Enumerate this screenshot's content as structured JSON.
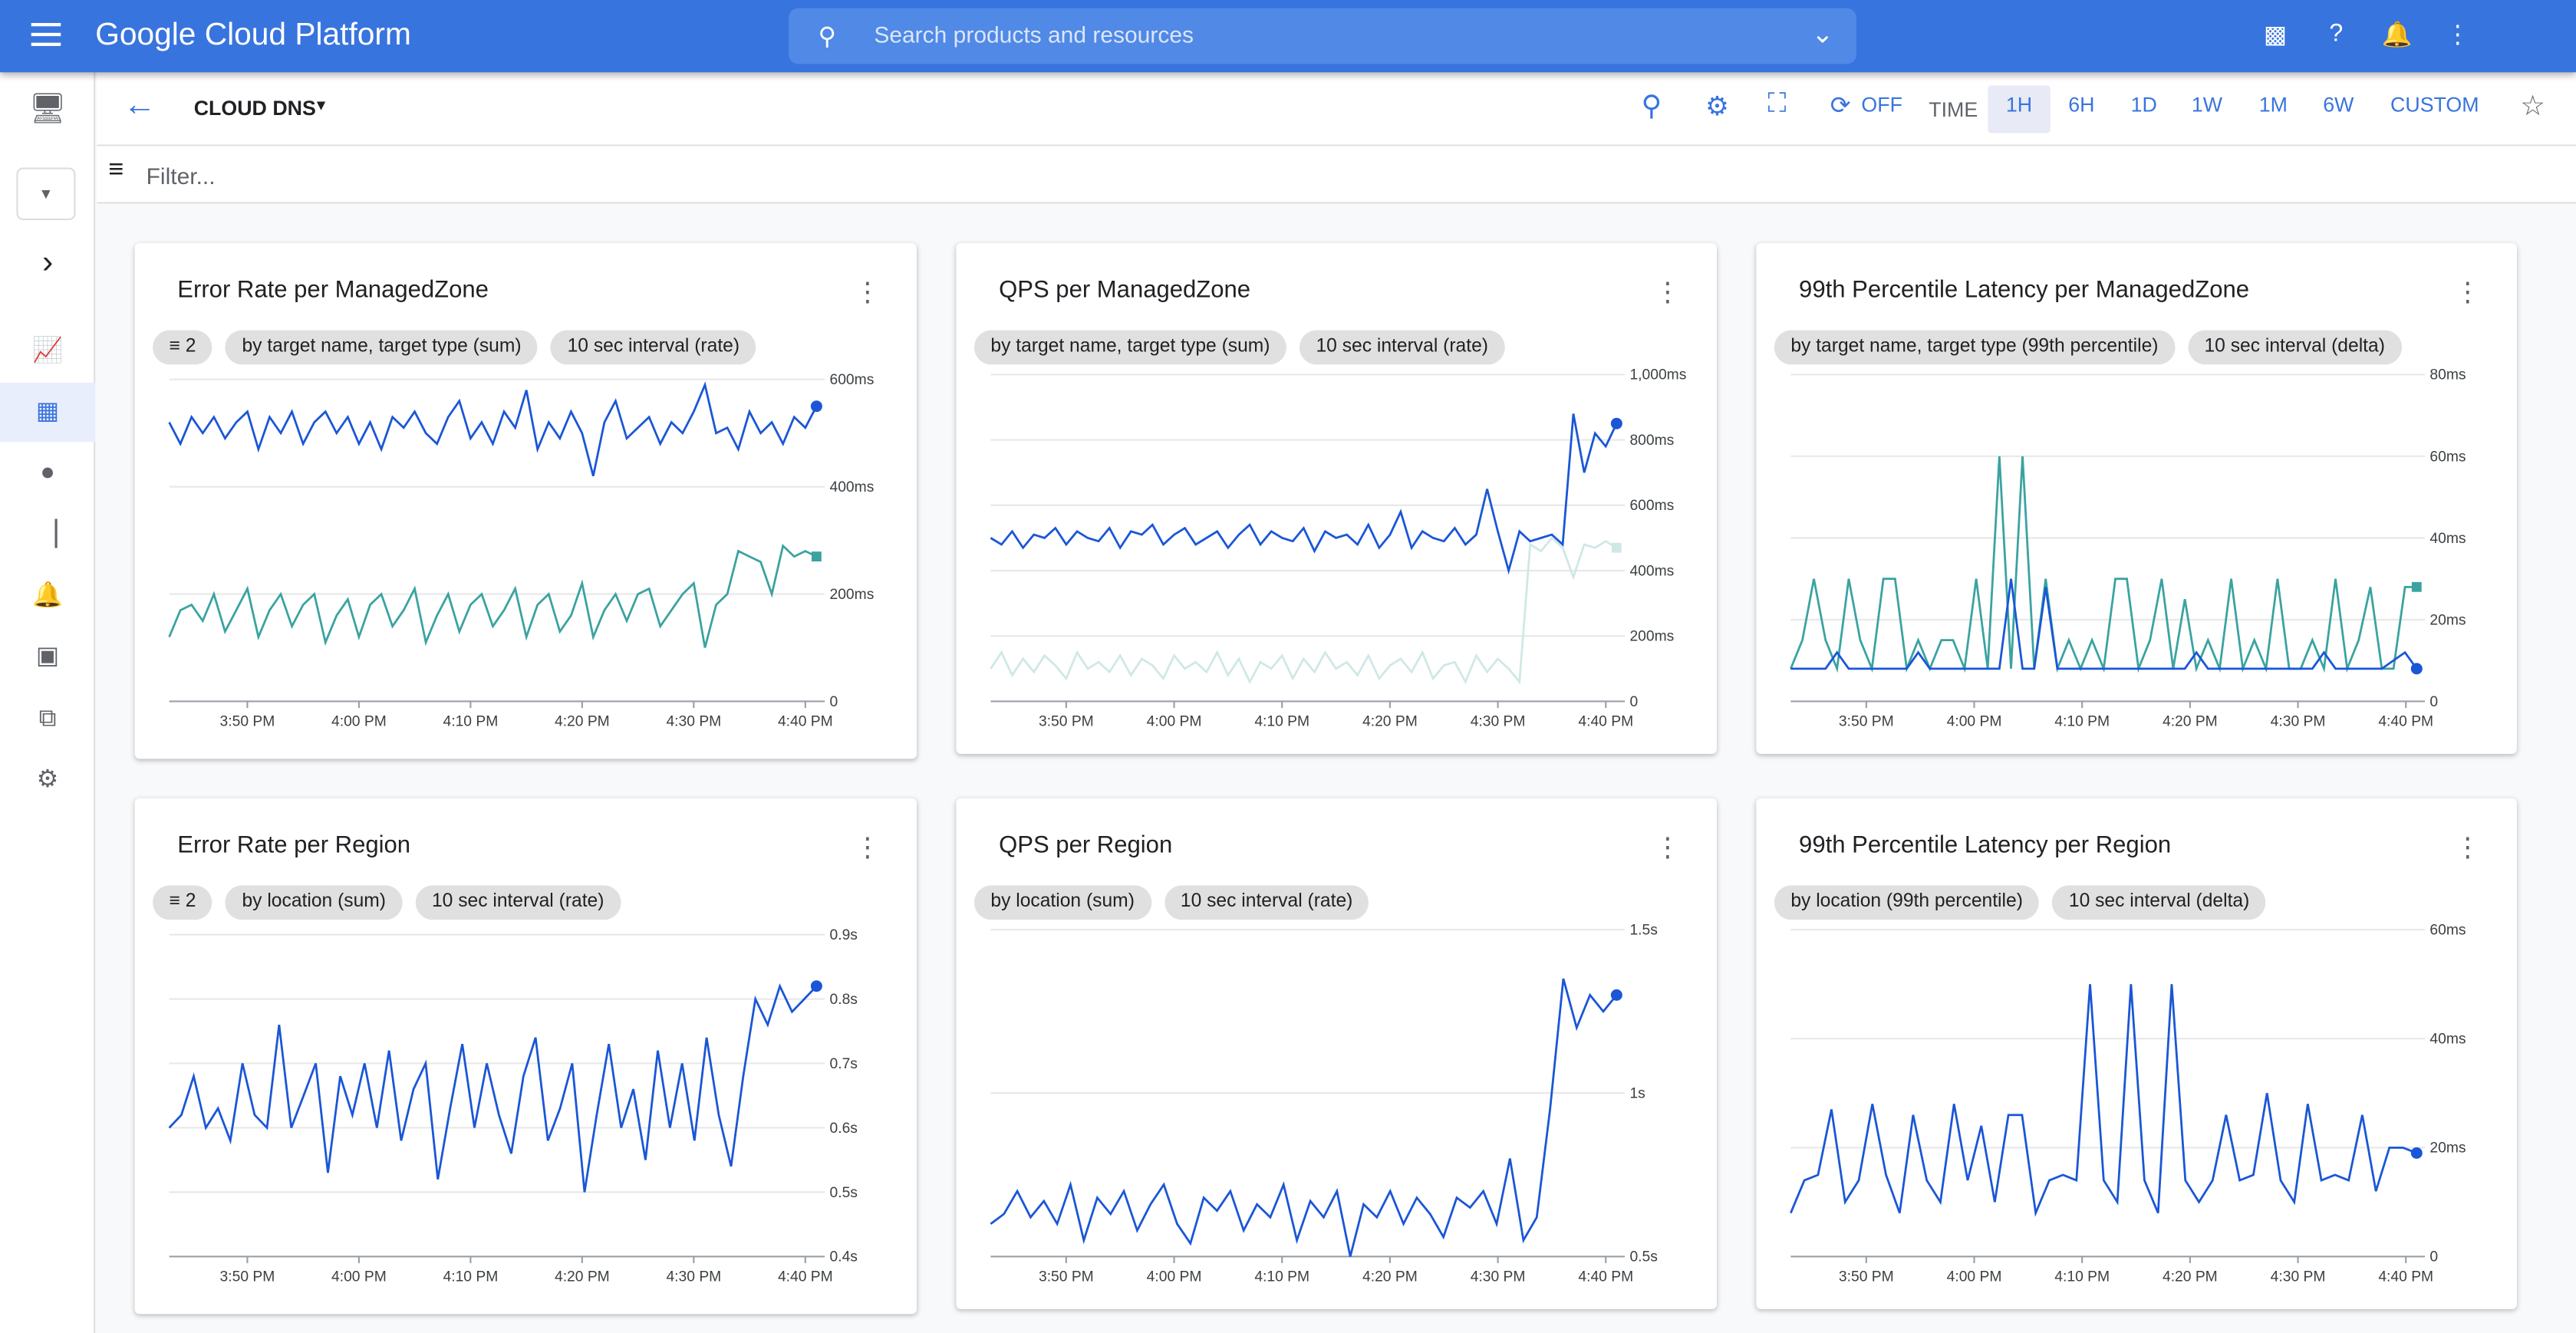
{
  "header": {
    "title": "Google Cloud Platform",
    "search_placeholder": "Search products and resources",
    "icons": [
      "cloud-shell-icon",
      "help-icon",
      "notifications-icon",
      "more-vert-icon"
    ]
  },
  "toolbar": {
    "dashboard": "CLOUD DNS",
    "refresh": "OFF",
    "time_label": "TIME",
    "ranges": [
      "1H",
      "6H",
      "1D",
      "1W",
      "1M",
      "6W",
      "CUSTOM"
    ],
    "selected_range": "1H"
  },
  "filter": {
    "placeholder": "Filter..."
  },
  "sidebar": {
    "items": [
      "metrics-explorer-icon",
      "dashboards-icon",
      "services-icon",
      "groups-icon",
      "alerting-icon",
      "uptime-icon",
      "logs-icon",
      "settings-icon"
    ],
    "active": 1
  },
  "colors": {
    "brand": "#3874de",
    "series_blue": "#1a56d6",
    "series_teal": "#3aa3a0",
    "series_faint": "#cfe8e6"
  },
  "time_ticks": [
    "3:50 PM",
    "4:00 PM",
    "4:10 PM",
    "4:20 PM",
    "4:30 PM",
    "4:40 PM"
  ],
  "charts": [
    {
      "title": "Error Rate per ManagedZone",
      "filter_count": "2",
      "chips": [
        "by target name, target type (sum)",
        "10 sec interval (rate)"
      ],
      "y_ticks": [
        "600ms",
        "400ms",
        "200ms",
        "0"
      ],
      "ylim": [
        0,
        600
      ],
      "series": [
        {
          "color": "#1a56d6",
          "values": [
            520,
            480,
            530,
            500,
            530,
            490,
            520,
            540,
            470,
            530,
            500,
            540,
            480,
            520,
            540,
            500,
            530,
            480,
            520,
            470,
            530,
            510,
            540,
            500,
            480,
            530,
            560,
            490,
            520,
            480,
            540,
            510,
            580,
            470,
            520,
            490,
            540,
            500,
            420,
            520,
            560,
            490,
            510,
            530,
            480,
            520,
            500,
            540,
            590,
            500,
            510,
            470,
            540,
            500,
            520,
            480,
            530,
            510,
            550
          ]
        },
        {
          "color": "#3aa3a0",
          "values": [
            120,
            170,
            180,
            150,
            200,
            130,
            170,
            210,
            120,
            170,
            200,
            140,
            180,
            200,
            110,
            160,
            190,
            120,
            180,
            200,
            140,
            170,
            210,
            110,
            160,
            200,
            130,
            180,
            200,
            140,
            170,
            210,
            120,
            180,
            200,
            130,
            160,
            220,
            120,
            170,
            200,
            150,
            200,
            210,
            140,
            170,
            200,
            220,
            100,
            180,
            200,
            280,
            270,
            260,
            200,
            290,
            270,
            280,
            270
          ]
        }
      ]
    },
    {
      "title": "QPS per ManagedZone",
      "chips": [
        "by target name, target type (sum)",
        "10 sec interval (rate)"
      ],
      "y_ticks": [
        "1,000ms",
        "800ms",
        "600ms",
        "400ms",
        "200ms",
        "0"
      ],
      "ylim": [
        0,
        1000
      ],
      "series": [
        {
          "color": "#cfe8e6",
          "values": [
            100,
            150,
            80,
            130,
            90,
            140,
            110,
            70,
            150,
            100,
            120,
            90,
            140,
            80,
            130,
            110,
            70,
            140,
            100,
            120,
            90,
            150,
            80,
            130,
            60,
            120,
            100,
            140,
            70,
            130,
            90,
            150,
            100,
            120,
            80,
            140,
            70,
            110,
            130,
            90,
            150,
            70,
            110,
            120,
            60,
            140,
            90,
            130,
            100,
            60,
            480,
            460,
            500,
            470,
            380,
            480,
            470,
            490,
            470
          ]
        },
        {
          "color": "#1a56d6",
          "values": [
            500,
            480,
            520,
            470,
            510,
            500,
            530,
            480,
            520,
            500,
            490,
            530,
            470,
            520,
            510,
            540,
            480,
            510,
            530,
            480,
            500,
            520,
            470,
            510,
            540,
            480,
            520,
            500,
            490,
            530,
            460,
            520,
            500,
            510,
            480,
            540,
            470,
            510,
            580,
            470,
            520,
            500,
            490,
            530,
            480,
            510,
            650,
            520,
            400,
            520,
            490,
            500,
            510,
            480,
            880,
            700,
            820,
            780,
            850
          ]
        }
      ]
    },
    {
      "title": "99th Percentile Latency per ManagedZone",
      "chips": [
        "by target name, target type (99th percentile)",
        "10 sec interval (delta)"
      ],
      "y_ticks": [
        "80ms",
        "60ms",
        "40ms",
        "20ms",
        "0"
      ],
      "ylim": [
        0,
        80
      ],
      "series": [
        {
          "color": "#3aa3a0",
          "values": [
            8,
            15,
            30,
            15,
            8,
            30,
            15,
            8,
            30,
            30,
            8,
            15,
            8,
            15,
            15,
            8,
            30,
            8,
            60,
            8,
            60,
            8,
            30,
            8,
            15,
            8,
            15,
            8,
            30,
            30,
            8,
            15,
            30,
            8,
            25,
            8,
            15,
            8,
            30,
            8,
            15,
            8,
            30,
            8,
            8,
            15,
            8,
            30,
            8,
            15,
            28,
            8,
            8,
            28,
            28
          ]
        },
        {
          "color": "#1a56d6",
          "values": [
            8,
            8,
            8,
            8,
            12,
            8,
            8,
            8,
            8,
            8,
            8,
            12,
            8,
            8,
            8,
            8,
            8,
            8,
            8,
            30,
            8,
            8,
            28,
            8,
            8,
            8,
            8,
            8,
            8,
            8,
            8,
            8,
            8,
            8,
            8,
            12,
            8,
            8,
            8,
            8,
            8,
            8,
            8,
            8,
            8,
            8,
            12,
            8,
            8,
            8,
            8,
            8,
            10,
            12,
            8
          ]
        }
      ]
    },
    {
      "title": "Error Rate per Region",
      "filter_count": "2",
      "chips": [
        "by location (sum)",
        "10 sec interval (rate)"
      ],
      "y_ticks": [
        "0.9s",
        "0.8s",
        "0.7s",
        "0.6s",
        "0.5s",
        "0.4s"
      ],
      "ylim": [
        0.4,
        0.9
      ],
      "series": [
        {
          "color": "#1a56d6",
          "values": [
            0.6,
            0.62,
            0.68,
            0.6,
            0.63,
            0.58,
            0.7,
            0.62,
            0.6,
            0.76,
            0.6,
            0.65,
            0.7,
            0.53,
            0.68,
            0.62,
            0.7,
            0.6,
            0.72,
            0.58,
            0.66,
            0.7,
            0.52,
            0.63,
            0.73,
            0.6,
            0.7,
            0.62,
            0.56,
            0.68,
            0.74,
            0.58,
            0.63,
            0.7,
            0.5,
            0.62,
            0.73,
            0.6,
            0.66,
            0.55,
            0.72,
            0.6,
            0.7,
            0.58,
            0.74,
            0.62,
            0.54,
            0.68,
            0.8,
            0.76,
            0.82,
            0.78,
            0.8,
            0.82
          ]
        }
      ]
    },
    {
      "title": "QPS per Region",
      "chips": [
        "by location (sum)",
        "10 sec interval (rate)"
      ],
      "y_ticks": [
        "1.5s",
        "1s",
        "0.5s"
      ],
      "ylim": [
        0.5,
        1.5
      ],
      "series": [
        {
          "color": "#1a56d6",
          "values": [
            0.6,
            0.63,
            0.7,
            0.62,
            0.67,
            0.6,
            0.72,
            0.55,
            0.68,
            0.63,
            0.7,
            0.58,
            0.66,
            0.72,
            0.6,
            0.54,
            0.68,
            0.64,
            0.7,
            0.58,
            0.66,
            0.62,
            0.72,
            0.55,
            0.67,
            0.62,
            0.7,
            0.5,
            0.66,
            0.62,
            0.7,
            0.6,
            0.68,
            0.63,
            0.56,
            0.68,
            0.65,
            0.7,
            0.6,
            0.8,
            0.55,
            0.62,
            0.95,
            1.35,
            1.2,
            1.3,
            1.25,
            1.3
          ]
        }
      ]
    },
    {
      "title": "99th Percentile Latency per Region",
      "chips": [
        "by location (99th percentile)",
        "10 sec interval (delta)"
      ],
      "y_ticks": [
        "60ms",
        "40ms",
        "20ms",
        "0"
      ],
      "ylim": [
        0,
        60
      ],
      "series": [
        {
          "color": "#1a56d6",
          "values": [
            8,
            14,
            15,
            27,
            10,
            14,
            28,
            15,
            8,
            26,
            14,
            10,
            28,
            14,
            24,
            10,
            26,
            26,
            8,
            14,
            15,
            14,
            50,
            14,
            10,
            50,
            14,
            8,
            50,
            14,
            10,
            14,
            26,
            14,
            15,
            30,
            14,
            10,
            28,
            14,
            15,
            14,
            26,
            12,
            20,
            20,
            19
          ]
        }
      ]
    }
  ]
}
